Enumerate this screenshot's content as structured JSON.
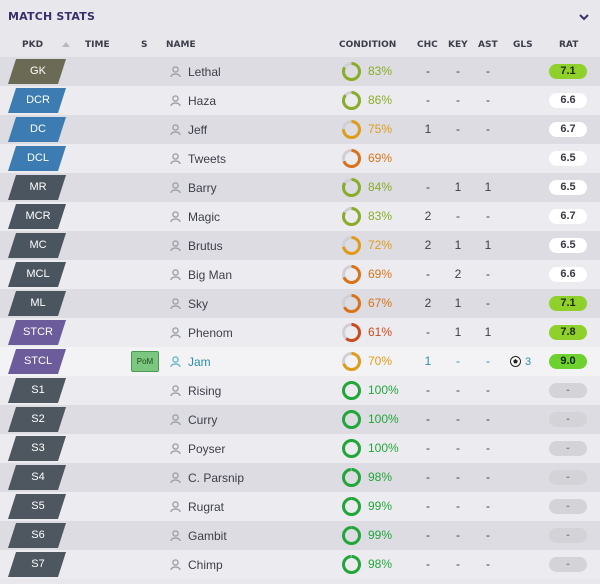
{
  "panel": {
    "title": "MATCH STATS",
    "collapse_icon": "chevron-down-icon"
  },
  "columns": {
    "pkd": "PKD",
    "time": "TIME",
    "s": "S",
    "name": "NAME",
    "condition": "CONDITION",
    "chc": "CHC",
    "key": "KEY",
    "ast": "AST",
    "gls": "GLS",
    "rat": "RAT"
  },
  "colors": {
    "gk": "#6b6a55",
    "def": "#3d7cb3",
    "mid": "#4b5560",
    "str": "#6c5c9c",
    "sub": "#4e5660",
    "cond_green": "#22a63a",
    "cond_olive": "#8aac27",
    "cond_orange": "#e09c19",
    "cond_dark_orange": "#d9731a",
    "cond_red": "#cc4b1d",
    "rating_green": "#8fd02b",
    "rating_bright": "#6dd12e"
  },
  "players": [
    {
      "pos": "GK",
      "posc": "gk",
      "time": "",
      "pom": "",
      "name": "Lethal",
      "cond": "83%",
      "condv": 0.83,
      "condc": "cond_olive",
      "chc": "-",
      "key": "-",
      "ast": "-",
      "gls": "",
      "rat": "7.1",
      "ratstyle": "green"
    },
    {
      "pos": "DCR",
      "posc": "def",
      "time": "",
      "pom": "",
      "name": "Haza",
      "cond": "86%",
      "condv": 0.86,
      "condc": "cond_olive",
      "chc": "-",
      "key": "-",
      "ast": "-",
      "gls": "",
      "rat": "6.6",
      "ratstyle": "white"
    },
    {
      "pos": "DC",
      "posc": "def",
      "time": "",
      "pom": "",
      "name": "Jeff",
      "cond": "75%",
      "condv": 0.75,
      "condc": "cond_orange",
      "chc": "1",
      "key": "-",
      "ast": "-",
      "gls": "",
      "rat": "6.7",
      "ratstyle": "white"
    },
    {
      "pos": "DCL",
      "posc": "def",
      "time": "",
      "pom": "",
      "name": "Tweets",
      "cond": "69%",
      "condv": 0.69,
      "condc": "cond_dark_orange",
      "chc": "",
      "key": "",
      "ast": "",
      "gls": "",
      "rat": "6.5",
      "ratstyle": "white"
    },
    {
      "pos": "MR",
      "posc": "mid",
      "time": "",
      "pom": "",
      "name": "Barry",
      "cond": "84%",
      "condv": 0.84,
      "condc": "cond_olive",
      "chc": "-",
      "key": "1",
      "ast": "1",
      "gls": "",
      "rat": "6.5",
      "ratstyle": "white"
    },
    {
      "pos": "MCR",
      "posc": "mid",
      "time": "",
      "pom": "",
      "name": "Magic",
      "cond": "83%",
      "condv": 0.83,
      "condc": "cond_olive",
      "chc": "2",
      "key": "-",
      "ast": "-",
      "gls": "",
      "rat": "6.7",
      "ratstyle": "white"
    },
    {
      "pos": "MC",
      "posc": "mid",
      "time": "",
      "pom": "",
      "name": "Brutus",
      "cond": "72%",
      "condv": 0.72,
      "condc": "cond_orange",
      "chc": "2",
      "key": "1",
      "ast": "1",
      "gls": "",
      "rat": "6.5",
      "ratstyle": "white"
    },
    {
      "pos": "MCL",
      "posc": "mid",
      "time": "",
      "pom": "",
      "name": "Big Man",
      "cond": "69%",
      "condv": 0.69,
      "condc": "cond_dark_orange",
      "chc": "-",
      "key": "2",
      "ast": "-",
      "gls": "",
      "rat": "6.6",
      "ratstyle": "white"
    },
    {
      "pos": "ML",
      "posc": "mid",
      "time": "",
      "pom": "",
      "name": "Sky",
      "cond": "67%",
      "condv": 0.67,
      "condc": "cond_dark_orange",
      "chc": "2",
      "key": "1",
      "ast": "-",
      "gls": "",
      "rat": "7.1",
      "ratstyle": "green"
    },
    {
      "pos": "STCR",
      "posc": "str",
      "time": "",
      "pom": "",
      "name": "Phenom",
      "cond": "61%",
      "condv": 0.61,
      "condc": "cond_red",
      "chc": "-",
      "key": "1",
      "ast": "1",
      "gls": "",
      "rat": "7.8",
      "ratstyle": "green"
    },
    {
      "pos": "STCL",
      "posc": "str",
      "time": "",
      "pom": "PoM",
      "name": "Jam",
      "cond": "70%",
      "condv": 0.7,
      "condc": "cond_orange",
      "chc": "1",
      "key": "-",
      "ast": "-",
      "gls": "3",
      "rat": "9.0",
      "ratstyle": "bright",
      "highlight": true
    },
    {
      "pos": "S1",
      "posc": "sub",
      "time": "",
      "pom": "",
      "name": "Rising",
      "cond": "100%",
      "condv": 1.0,
      "condc": "cond_green",
      "chc": "-",
      "key": "-",
      "ast": "-",
      "gls": "",
      "rat": "-",
      "ratstyle": "grey"
    },
    {
      "pos": "S2",
      "posc": "sub",
      "time": "",
      "pom": "",
      "name": "Curry",
      "cond": "100%",
      "condv": 1.0,
      "condc": "cond_green",
      "chc": "-",
      "key": "-",
      "ast": "-",
      "gls": "",
      "rat": "-",
      "ratstyle": "grey"
    },
    {
      "pos": "S3",
      "posc": "sub",
      "time": "",
      "pom": "",
      "name": "Poyser",
      "cond": "100%",
      "condv": 1.0,
      "condc": "cond_green",
      "chc": "-",
      "key": "-",
      "ast": "-",
      "gls": "",
      "rat": "-",
      "ratstyle": "grey"
    },
    {
      "pos": "S4",
      "posc": "sub",
      "time": "",
      "pom": "",
      "name": "C. Parsnip",
      "cond": "98%",
      "condv": 0.98,
      "condc": "cond_green",
      "chc": "-",
      "key": "-",
      "ast": "-",
      "gls": "",
      "rat": "-",
      "ratstyle": "grey"
    },
    {
      "pos": "S5",
      "posc": "sub",
      "time": "",
      "pom": "",
      "name": "Rugrat",
      "cond": "99%",
      "condv": 0.99,
      "condc": "cond_green",
      "chc": "-",
      "key": "-",
      "ast": "-",
      "gls": "",
      "rat": "-",
      "ratstyle": "grey"
    },
    {
      "pos": "S6",
      "posc": "sub",
      "time": "",
      "pom": "",
      "name": "Gambit",
      "cond": "99%",
      "condv": 0.99,
      "condc": "cond_green",
      "chc": "-",
      "key": "-",
      "ast": "-",
      "gls": "",
      "rat": "-",
      "ratstyle": "grey"
    },
    {
      "pos": "S7",
      "posc": "sub",
      "time": "",
      "pom": "",
      "name": "Chimp",
      "cond": "98%",
      "condv": 0.98,
      "condc": "cond_green",
      "chc": "-",
      "key": "-",
      "ast": "-",
      "gls": "",
      "rat": "-",
      "ratstyle": "grey"
    }
  ]
}
